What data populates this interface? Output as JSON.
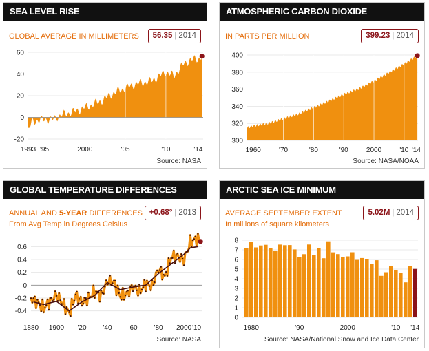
{
  "panels": {
    "sea": {
      "header": "SEA LEVEL RISE",
      "subtitle": "GLOBAL AVERAGE IN MILLIMETERS",
      "badge_value": "56.35",
      "badge_year": "2014",
      "source": "Source: NASA"
    },
    "co2": {
      "header": "ATMOSPHERIC CARBON DIOXIDE",
      "subtitle": "IN PARTS PER MILLION",
      "badge_value": "399.23",
      "badge_year": "2014",
      "source": "Source: NASA/NOAA"
    },
    "temp": {
      "header": "GLOBAL TEMPERATURE DIFFERENCES",
      "subtitle_a": "ANNUAL AND ",
      "subtitle_b": "5-YEAR",
      "subtitle_c": " DIFFERENCES",
      "subtitle2": "From Avg Temp in Degrees Celsius",
      "badge_value": "+0.68°",
      "badge_year": "2013",
      "source": "Source: NASA"
    },
    "ice": {
      "header": "ARCTIC SEA ICE MINIMUM",
      "subtitle": "AVERAGE SEPTEMBER EXTENT",
      "subtitle2": "In millions of square kilometers",
      "badge_value": "5.02M",
      "badge_year": "2014",
      "source": "Source: NASA/National Snow and Ice Data Center"
    }
  },
  "colors": {
    "orange": "#f0900f",
    "dark": "#8b1419",
    "text_orange": "#e46d0b",
    "grid": "#e3e3e3",
    "zero": "#9a9a9a",
    "temp_5yr": "#4a1010"
  },
  "chart_data": [
    {
      "id": "sea",
      "type": "area",
      "title": "SEA LEVEL RISE",
      "ylabel": "GLOBAL AVERAGE IN MILLIMETERS",
      "xlim": [
        1993,
        2014.6
      ],
      "ylim": [
        -20,
        60
      ],
      "yticks": [
        -20,
        0,
        20,
        40,
        60
      ],
      "xticks": [
        {
          "v": 1993,
          "label": "1993"
        },
        {
          "v": 1995,
          "label": "'95"
        },
        {
          "v": 2000,
          "label": "2000"
        },
        {
          "v": 2005,
          "label": "'05"
        },
        {
          "v": 2010,
          "label": "'10"
        },
        {
          "v": 2014,
          "label": "'14"
        }
      ],
      "x": [
        1993,
        1993.5,
        1994,
        1995,
        1996,
        1997,
        1998,
        1999,
        2000,
        2001,
        2002,
        2003,
        2004,
        2005,
        2006,
        2007,
        2008,
        2009,
        2010,
        2011,
        2012,
        2013,
        2014,
        2014.45
      ],
      "values": [
        -12,
        -4,
        -3,
        -2,
        -2,
        2,
        4,
        6,
        9,
        12,
        15,
        20,
        24,
        27,
        30,
        32,
        33,
        37,
        42,
        38,
        48,
        53,
        54,
        56.35
      ],
      "last": {
        "x": 2014.45,
        "y": 56.35
      }
    },
    {
      "id": "co2",
      "type": "area",
      "title": "ATMOSPHERIC CARBON DIOXIDE",
      "ylabel": "IN PARTS PER MILLION",
      "xlim": [
        1958,
        2014.6
      ],
      "ylim": [
        300,
        400
      ],
      "yticks": [
        300,
        320,
        340,
        360,
        380,
        400
      ],
      "xticks": [
        {
          "v": 1960,
          "label": "1960"
        },
        {
          "v": 1970,
          "label": "'70"
        },
        {
          "v": 1980,
          "label": "'80"
        },
        {
          "v": 1990,
          "label": "'90"
        },
        {
          "v": 2000,
          "label": "2000"
        },
        {
          "v": 2010,
          "label": "'10"
        },
        {
          "v": 2014,
          "label": "'14"
        }
      ],
      "x": [
        1958,
        1960,
        1965,
        1970,
        1975,
        1980,
        1985,
        1990,
        1995,
        2000,
        2005,
        2010,
        2014.4
      ],
      "values": [
        315,
        317,
        320,
        325.5,
        331,
        338.5,
        346,
        354,
        360.5,
        369.5,
        379.5,
        389.5,
        399.23
      ],
      "last": {
        "x": 2014.4,
        "y": 399.23
      }
    },
    {
      "id": "temp",
      "type": "line",
      "title": "GLOBAL TEMPERATURE DIFFERENCES",
      "ylabel": "From Avg Temp in Degrees Celsius",
      "xlim": [
        1880,
        2014
      ],
      "ylim": [
        -0.5,
        0.7
      ],
      "yticks": [
        -0.4,
        -0.2,
        0,
        0.2,
        0.4,
        0.6
      ],
      "ytick_labels": [
        "-0.4",
        "-0.2",
        "0",
        "0.2",
        "0.4",
        "0.6"
      ],
      "xticks": [
        {
          "v": 1880,
          "label": "1880"
        },
        {
          "v": 1900,
          "label": "1900"
        },
        {
          "v": 1920,
          "label": "'20"
        },
        {
          "v": 1940,
          "label": "'40"
        },
        {
          "v": 1960,
          "label": "'60"
        },
        {
          "v": 1980,
          "label": "'80"
        },
        {
          "v": 2000,
          "label": "2000"
        },
        {
          "v": 2010,
          "label": "'10"
        }
      ],
      "series": [
        {
          "name": "Annual",
          "x": [
            1880,
            1885,
            1890,
            1895,
            1900,
            1905,
            1910,
            1915,
            1920,
            1925,
            1930,
            1935,
            1940,
            1945,
            1950,
            1955,
            1960,
            1965,
            1970,
            1975,
            1980,
            1985,
            1990,
            1995,
            2000,
            2005,
            2010,
            2013
          ],
          "values": [
            -0.2,
            -0.27,
            -0.36,
            -0.25,
            -0.15,
            -0.28,
            -0.44,
            -0.15,
            -0.27,
            -0.2,
            -0.1,
            -0.17,
            0.06,
            0.05,
            -0.17,
            -0.14,
            -0.02,
            -0.1,
            0.02,
            -0.02,
            0.26,
            0.12,
            0.44,
            0.45,
            0.39,
            0.67,
            0.72,
            0.68
          ]
        },
        {
          "name": "5-Year",
          "x": [
            1882,
            1890,
            1900,
            1910,
            1920,
            1930,
            1940,
            1950,
            1960,
            1970,
            1980,
            1990,
            2000,
            2005,
            2011
          ],
          "values": [
            -0.26,
            -0.3,
            -0.25,
            -0.4,
            -0.26,
            -0.16,
            0.04,
            -0.07,
            -0.03,
            0.0,
            0.18,
            0.33,
            0.48,
            0.58,
            0.6
          ]
        }
      ],
      "last": {
        "x": 2013,
        "y": 0.68
      }
    },
    {
      "id": "ice",
      "type": "bar",
      "title": "ARCTIC SEA ICE MINIMUM",
      "ylabel": "In millions of square kilometers",
      "ylim": [
        0,
        8
      ],
      "yticks": [
        0,
        1,
        2,
        3,
        4,
        5,
        6,
        7,
        8
      ],
      "categories": [
        1979,
        1980,
        1981,
        1982,
        1983,
        1984,
        1985,
        1986,
        1987,
        1988,
        1989,
        1990,
        1991,
        1992,
        1993,
        1994,
        1995,
        1996,
        1997,
        1998,
        1999,
        2000,
        2001,
        2002,
        2003,
        2004,
        2005,
        2006,
        2007,
        2008,
        2009,
        2010,
        2011,
        2012,
        2013,
        2014
      ],
      "xticks": [
        {
          "v": 1980,
          "label": "1980"
        },
        {
          "v": 1990,
          "label": "'90"
        },
        {
          "v": 2000,
          "label": "2000"
        },
        {
          "v": 2010,
          "label": "'10"
        },
        {
          "v": 2014,
          "label": "'14"
        }
      ],
      "values": [
        7.2,
        7.85,
        7.25,
        7.45,
        7.52,
        7.17,
        6.93,
        7.54,
        7.48,
        7.49,
        7.04,
        6.24,
        6.55,
        7.55,
        6.5,
        7.18,
        6.13,
        7.88,
        6.74,
        6.56,
        6.24,
        6.32,
        6.75,
        5.96,
        6.15,
        6.05,
        5.57,
        5.92,
        4.3,
        4.68,
        5.36,
        4.9,
        4.61,
        3.63,
        5.35,
        5.02
      ],
      "highlight_last": true
    }
  ]
}
